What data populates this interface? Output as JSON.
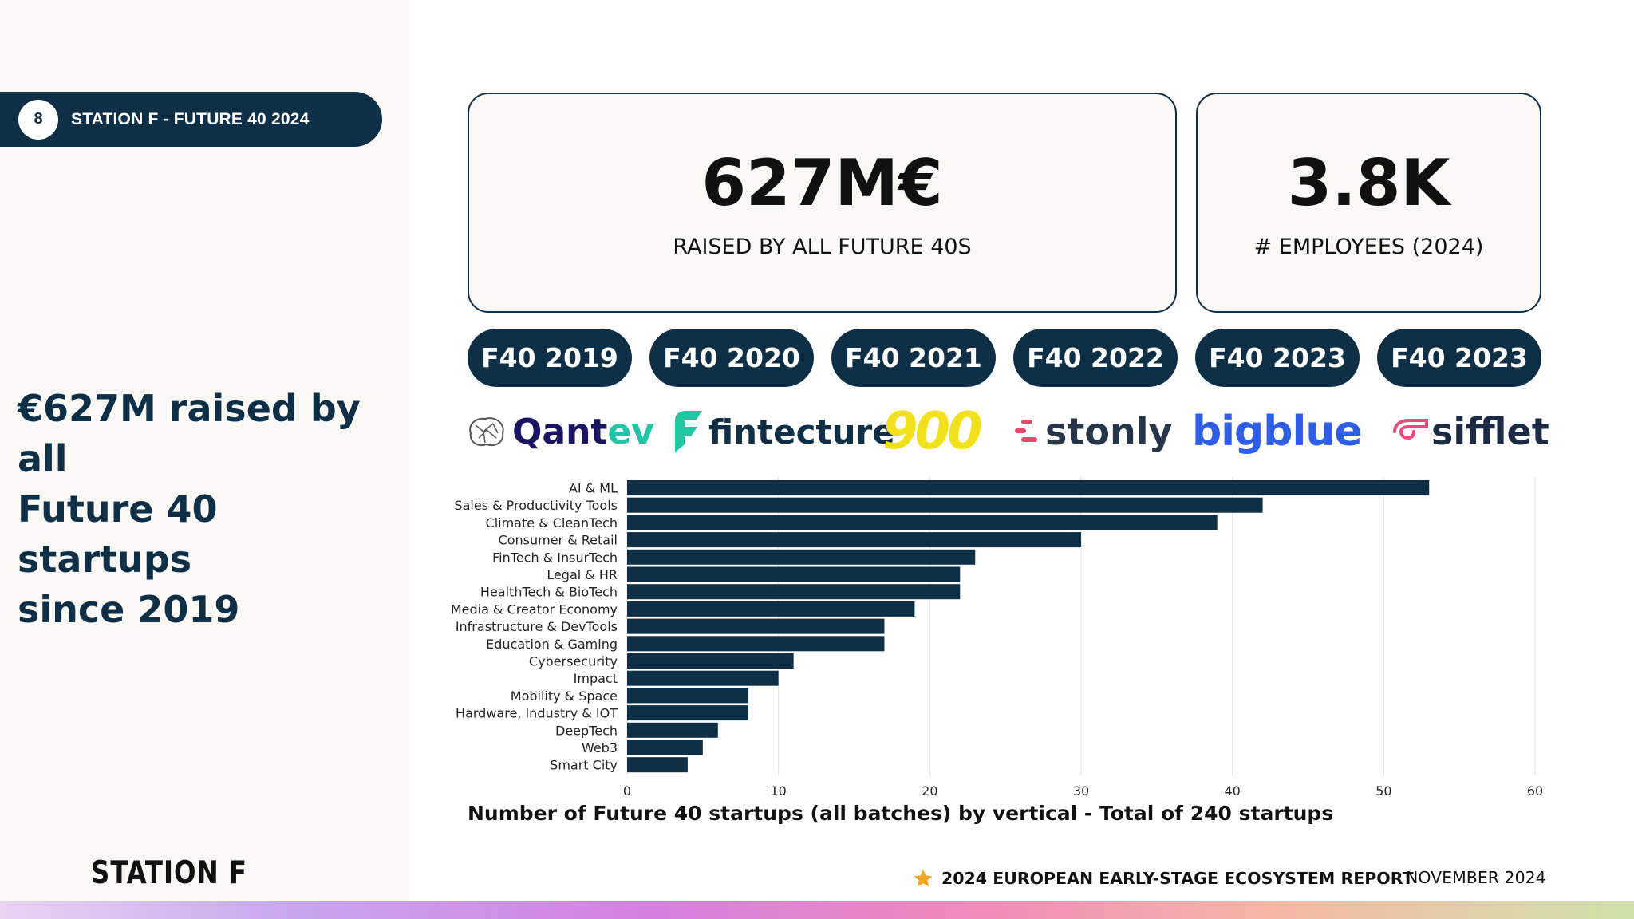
{
  "header": {
    "slide_number": "8",
    "slide_title": "STATION F - FUTURE 40 2024"
  },
  "headline": {
    "line1": "€627M raised by all",
    "line2": "Future 40 startups",
    "line3": "since 2019"
  },
  "stats": [
    {
      "value": "627M€",
      "label": "RAISED BY ALL FUTURE 40S"
    },
    {
      "value": "3.8K",
      "label": "# EMPLOYEES (2024)"
    }
  ],
  "batches": [
    "F40 2019",
    "F40 2020",
    "F40 2021",
    "F40 2022",
    "F40 2023",
    "F40 2023"
  ],
  "logos": [
    {
      "name": "Qantev",
      "text_a": "Qant",
      "text_b": "ev",
      "color_a": "#1b1464",
      "color_b": "#22c3a6"
    },
    {
      "name": "fintecture",
      "text": "fintecture",
      "color": "#0f2f47",
      "accent": "#1fc7a0"
    },
    {
      "name": "900",
      "text": "900",
      "color": "#f2e01a"
    },
    {
      "name": "stonly",
      "text": "stonly",
      "color": "#263648",
      "accent": "#e84a6c"
    },
    {
      "name": "bigblue",
      "text": "bigblue",
      "color": "#2f5ee6"
    },
    {
      "name": "sifflet",
      "text": "sifflet",
      "color": "#1d2a44",
      "accent": "#e94b7b"
    }
  ],
  "chart_data": {
    "type": "bar",
    "orientation": "horizontal",
    "title": "Number of Future 40 startups (all batches) by vertical - Total of 240 startups",
    "categories": [
      "AI & ML",
      "Sales & Productivity Tools",
      "Climate & CleanTech",
      "Consumer & Retail",
      "FinTech & InsurTech",
      "Legal & HR",
      "HealthTech & BioTech",
      "Media & Creator Economy",
      "Infrastructure & DevTools",
      "Education & Gaming",
      "Cybersecurity",
      "Impact",
      "Mobility & Space",
      "Hardware, Industry & IOT",
      "DeepTech",
      "Web3",
      "Smart City"
    ],
    "values": [
      53,
      42,
      39,
      30,
      23,
      22,
      22,
      19,
      17,
      17,
      11,
      10,
      8,
      8,
      6,
      5,
      4
    ],
    "xlim": [
      0,
      60
    ],
    "xticks": [
      "0",
      "10",
      "20",
      "30",
      "40",
      "50",
      "60"
    ],
    "grid": true,
    "bar_color": "#0f2f47"
  },
  "footer": {
    "brand": "STATION F",
    "report": "2024 EUROPEAN EARLY-STAGE ECOSYSTEM REPORT",
    "date": "NOVEMBER 2024",
    "star_color": "#f5a623"
  }
}
